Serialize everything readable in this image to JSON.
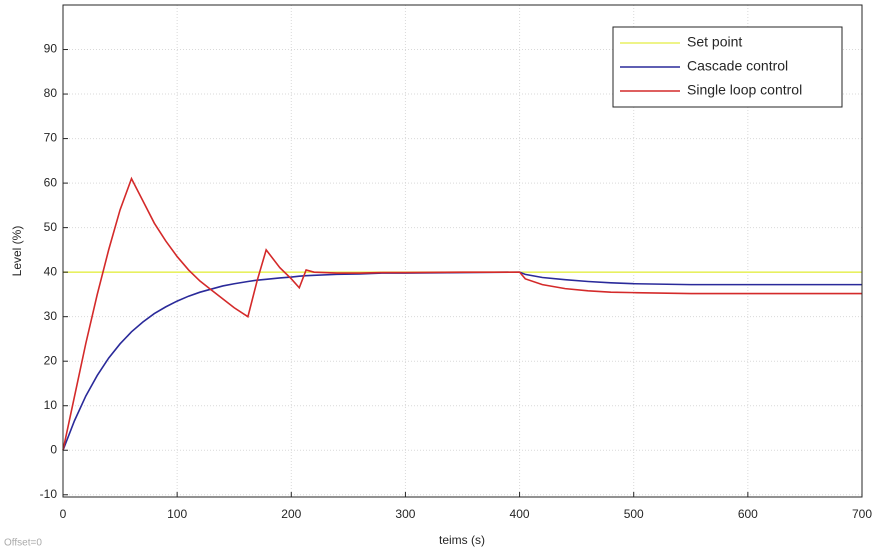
{
  "chart_data": {
    "type": "line",
    "xlabel": "teims (s)",
    "ylabel": "Level (%)",
    "note": "Offset=0",
    "x": [
      0,
      10,
      20,
      30,
      40,
      50,
      60,
      70,
      80,
      90,
      100,
      110,
      120,
      130,
      140,
      150,
      162,
      170,
      178,
      190,
      200,
      207,
      213,
      220,
      240,
      260,
      280,
      300,
      350,
      400,
      405,
      420,
      440,
      460,
      480,
      500,
      550,
      600,
      650,
      700
    ],
    "series": [
      {
        "name": "Set point",
        "color": "#e8f060",
        "values": [
          40,
          40,
          40,
          40,
          40,
          40,
          40,
          40,
          40,
          40,
          40,
          40,
          40,
          40,
          40,
          40,
          40,
          40,
          40,
          40,
          40,
          40,
          40,
          40,
          40,
          40,
          40,
          40,
          40,
          40,
          40,
          40,
          40,
          40,
          40,
          40,
          40,
          40,
          40,
          40
        ]
      },
      {
        "name": "Cascade control",
        "color": "#2a2a9a",
        "values": [
          0,
          6.6,
          12.2,
          16.8,
          20.7,
          23.9,
          26.6,
          28.8,
          30.7,
          32.2,
          33.5,
          34.6,
          35.5,
          36.2,
          36.9,
          37.4,
          37.9,
          38.2,
          38.4,
          38.7,
          38.9,
          39.1,
          39.2,
          39.3,
          39.5,
          39.6,
          39.8,
          39.8,
          39.9,
          40,
          39.5,
          38.8,
          38.3,
          37.9,
          37.6,
          37.4,
          37.2,
          37.2,
          37.2,
          37.2
        ]
      },
      {
        "name": "Single loop control",
        "color": "#d42a2a",
        "values": [
          0,
          12,
          24,
          35,
          45,
          54,
          61,
          56,
          51,
          47,
          43.5,
          40.5,
          38,
          36,
          34,
          32,
          30,
          38,
          45,
          41,
          38.5,
          36.5,
          40.5,
          40,
          39.8,
          39.8,
          39.9,
          39.9,
          40,
          40,
          38.5,
          37.2,
          36.3,
          35.8,
          35.5,
          35.4,
          35.2,
          35.2,
          35.2,
          35.2
        ]
      }
    ],
    "xlim": [
      0,
      700
    ],
    "xticks": [
      0,
      100,
      200,
      300,
      400,
      500,
      600,
      700
    ],
    "ylim": [
      -10.5,
      100
    ],
    "yticks": [
      -10,
      0,
      10,
      20,
      30,
      40,
      50,
      60,
      70,
      80,
      90
    ],
    "grid": true,
    "legend": "upper right"
  }
}
